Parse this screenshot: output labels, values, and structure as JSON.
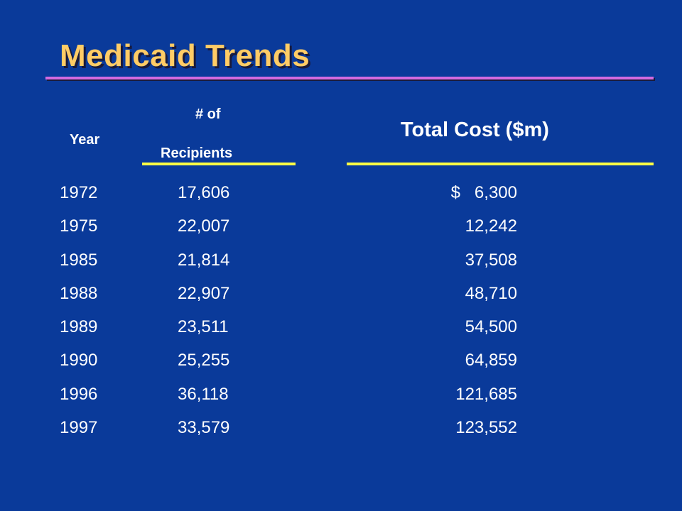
{
  "title": "Medicaid Trends",
  "headers": {
    "year": "Year",
    "recipients_line1": "# of",
    "recipients_line2": "Recipients",
    "cost": "Total Cost ($m)"
  },
  "rows": [
    {
      "year": "1972",
      "recipients": "17,606",
      "cost": "$   6,300"
    },
    {
      "year": "1975",
      "recipients": "22,007",
      "cost": "12,242"
    },
    {
      "year": "1985",
      "recipients": "21,814",
      "cost": "37,508"
    },
    {
      "year": "1988",
      "recipients": "22,907",
      "cost": "48,710"
    },
    {
      "year": "1989",
      "recipients": "23,511",
      "cost": "54,500"
    },
    {
      "year": "1990",
      "recipients": "25,255",
      "cost": "64,859"
    },
    {
      "year": "1996",
      "recipients": "36,118",
      "cost": "121,685"
    },
    {
      "year": "1997",
      "recipients": "33,579",
      "cost": "123,552"
    }
  ],
  "colors": {
    "background": "#0a3a9a",
    "title": "#ffcc66",
    "title_rule": "#d36ae0",
    "header_rule": "#ffff44",
    "text": "#ffffff"
  }
}
